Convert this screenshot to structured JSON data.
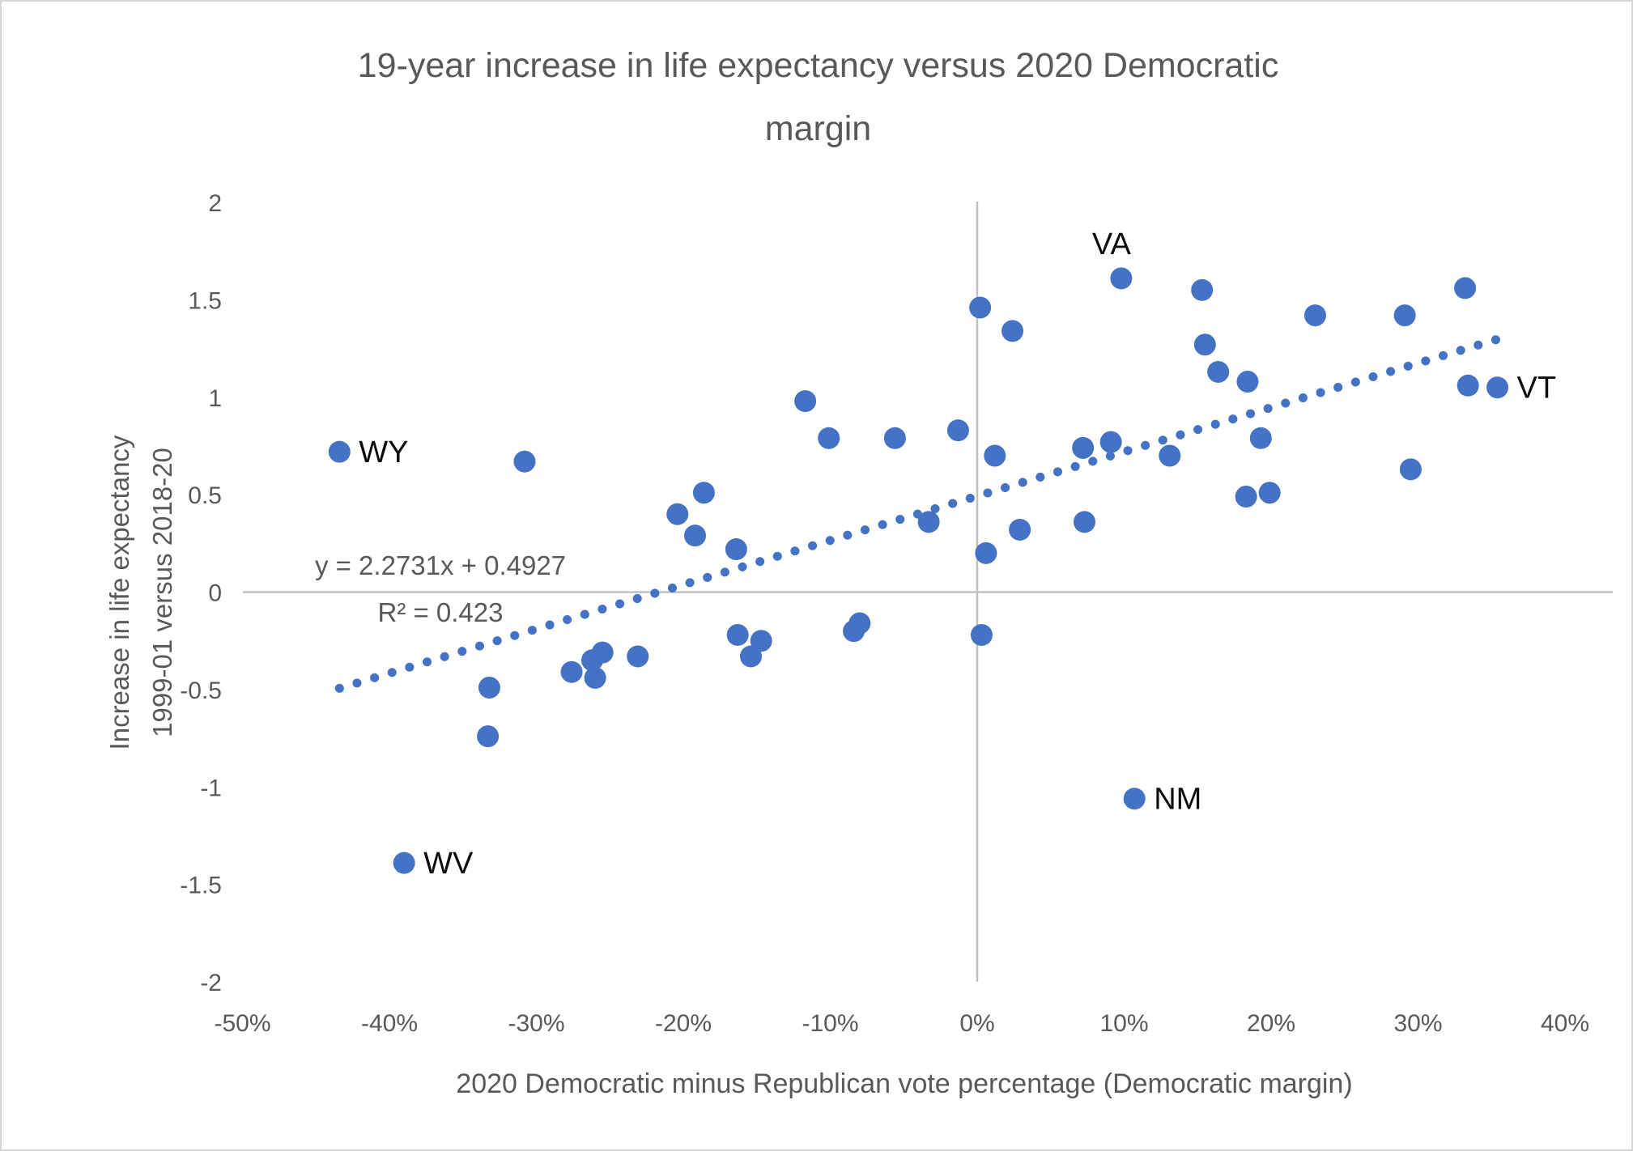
{
  "colors": {
    "point": "#4472C4",
    "trendline": "#4472C4",
    "axis_text": "#595959",
    "gridline": "#BFBFBF",
    "point_label": "#0d0d0d",
    "border": "#D6D6D6",
    "background": "#FFFFFF"
  },
  "chart_data": {
    "type": "scatter",
    "title": "19-year increase in life expectancy versus 2020 Democratic margin",
    "title_lines": [
      "19-year increase in life expectancy versus 2020 Democratic",
      "margin"
    ],
    "xlabel": "2020 Democratic minus Republican vote percentage (Democratic margin)",
    "ylabel_lines": [
      "Increase in life expectancy",
      "1999-01 versus 2018-20"
    ],
    "xlim": [
      -50,
      40
    ],
    "ylim": [
      -2,
      2
    ],
    "x_unit": "percent",
    "grid": "zero-axes-only",
    "legend": "none",
    "x_ticks": {
      "labels": [
        "-50%",
        "-40%",
        "-30%",
        "-20%",
        "-10%",
        "0%",
        "10%",
        "20%",
        "30%",
        "40%"
      ],
      "values": [
        -50,
        -40,
        -30,
        -20,
        -10,
        0,
        10,
        20,
        30,
        40
      ]
    },
    "y_ticks": {
      "labels": [
        "2",
        "1.5",
        "1",
        "0.5",
        "0",
        "-0.5",
        "-1",
        "-1.5",
        "-2"
      ],
      "values": [
        2,
        1.5,
        1,
        0.5,
        0,
        -0.5,
        -1,
        -1.5,
        -2
      ]
    },
    "trendline": {
      "style": "dotted",
      "equation_label": "y = 2.2731x + 0.4927",
      "r2_label": "R² = 0.423",
      "slope": 2.2731,
      "intercept": 0.4927,
      "x_start_pct": -43.4,
      "x_end_pct": 35.4
    },
    "points": [
      {
        "x": -43.4,
        "y": 0.72,
        "label": "WY",
        "label_pos": "right"
      },
      {
        "x": -39.0,
        "y": -1.39,
        "label": "WV",
        "label_pos": "right"
      },
      {
        "x": -33.2,
        "y": -0.49
      },
      {
        "x": -33.3,
        "y": -0.74
      },
      {
        "x": -30.8,
        "y": 0.67
      },
      {
        "x": -27.6,
        "y": -0.41
      },
      {
        "x": -26.2,
        "y": -0.35
      },
      {
        "x": -25.5,
        "y": -0.31
      },
      {
        "x": -26.0,
        "y": -0.44
      },
      {
        "x": -23.1,
        "y": -0.33
      },
      {
        "x": -20.4,
        "y": 0.4
      },
      {
        "x": -19.2,
        "y": 0.29
      },
      {
        "x": -18.6,
        "y": 0.51
      },
      {
        "x": -16.4,
        "y": 0.22
      },
      {
        "x": -16.3,
        "y": -0.22
      },
      {
        "x": -15.4,
        "y": -0.33
      },
      {
        "x": -14.7,
        "y": -0.25
      },
      {
        "x": -11.7,
        "y": 0.98
      },
      {
        "x": -10.1,
        "y": 0.79
      },
      {
        "x": -8.4,
        "y": -0.2
      },
      {
        "x": -8.0,
        "y": -0.16
      },
      {
        "x": -5.6,
        "y": 0.79
      },
      {
        "x": -3.3,
        "y": 0.36
      },
      {
        "x": -1.3,
        "y": 0.83
      },
      {
        "x": 0.2,
        "y": 1.46
      },
      {
        "x": 0.3,
        "y": -0.22
      },
      {
        "x": 0.6,
        "y": 0.2
      },
      {
        "x": 1.2,
        "y": 0.7
      },
      {
        "x": 2.4,
        "y": 1.34
      },
      {
        "x": 2.9,
        "y": 0.32
      },
      {
        "x": 7.2,
        "y": 0.74
      },
      {
        "x": 7.3,
        "y": 0.36
      },
      {
        "x": 9.1,
        "y": 0.77
      },
      {
        "x": 9.8,
        "y": 1.61,
        "label": "VA",
        "label_pos": "above"
      },
      {
        "x": 10.7,
        "y": -1.06,
        "label": "NM",
        "label_pos": "right"
      },
      {
        "x": 13.1,
        "y": 0.7
      },
      {
        "x": 15.3,
        "y": 1.55
      },
      {
        "x": 15.5,
        "y": 1.27
      },
      {
        "x": 16.4,
        "y": 1.13
      },
      {
        "x": 18.4,
        "y": 1.08
      },
      {
        "x": 18.3,
        "y": 0.49
      },
      {
        "x": 19.3,
        "y": 0.79
      },
      {
        "x": 19.9,
        "y": 0.51
      },
      {
        "x": 23.0,
        "y": 1.42
      },
      {
        "x": 29.1,
        "y": 1.42
      },
      {
        "x": 29.5,
        "y": 0.63
      },
      {
        "x": 33.2,
        "y": 1.56
      },
      {
        "x": 33.4,
        "y": 1.06
      },
      {
        "x": 35.4,
        "y": 1.05,
        "label": "VT",
        "label_pos": "right"
      }
    ]
  }
}
